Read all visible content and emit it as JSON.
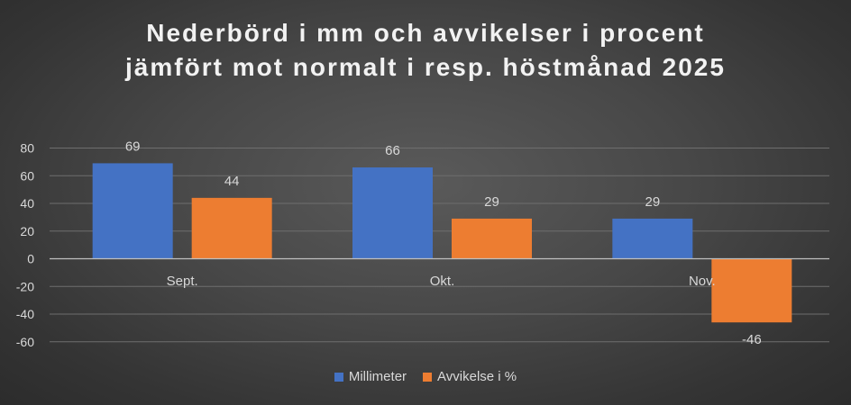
{
  "title_line1": "Nederbörd i mm och avvikelser i procent",
  "title_line2": "jämfört mot normalt i resp. höstmånad 2025",
  "colors": {
    "millimeter": "#4472c4",
    "avvikelse": "#ed7d31",
    "text": "#d9d9d9",
    "grid": "#6e6e6e",
    "axis": "#bfbfbf"
  },
  "chart_data": {
    "type": "bar",
    "title": "Nederbörd i mm och avvikelser i procent jämfört mot normalt i resp. höstmånad 2025",
    "categories": [
      "Sept.",
      "Okt.",
      "Nov."
    ],
    "series": [
      {
        "name": "Millimeter",
        "values": [
          69,
          66,
          29
        ]
      },
      {
        "name": "Avvikelse i %",
        "values": [
          44,
          29,
          -46
        ]
      }
    ],
    "yticks": [
      "80",
      "60",
      "40",
      "20",
      "0",
      "-20",
      "-40",
      "-60"
    ],
    "ylim": [
      -60,
      80
    ],
    "grid": true,
    "legend": "bottom"
  }
}
